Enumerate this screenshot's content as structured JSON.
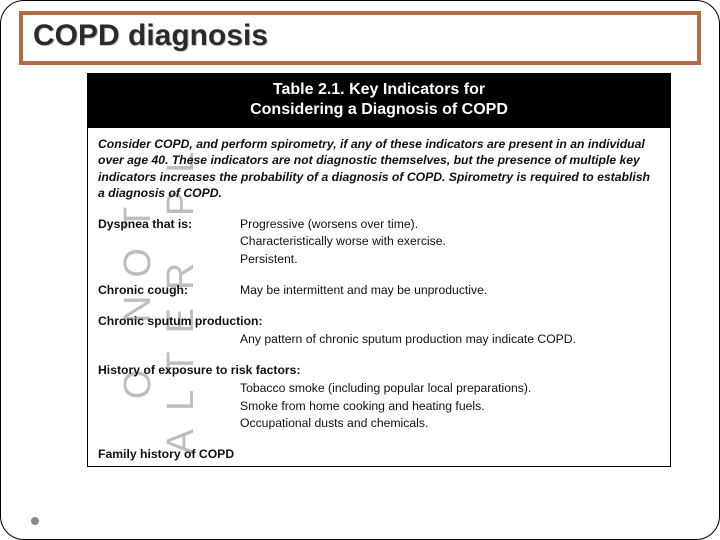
{
  "slide": {
    "title": "COPD diagnosis"
  },
  "table": {
    "header": {
      "line1": "Table 2.1. Key Indicators for",
      "line2": "Considering a Diagnosis of COPD"
    },
    "intro": "Consider COPD, and perform spirometry, if any of these indicators are present in an individual over age 40. These indicators are not diagnostic themselves, but the presence of multiple key indicators increases the probability of a diagnosis of COPD. Spirometry is required to establish a diagnosis of COPD.",
    "dyspnea": {
      "label": "Dyspnea that is:",
      "l1": "Progressive (worsens over time).",
      "l2": "Characteristically worse with exercise.",
      "l3": "Persistent."
    },
    "cough": {
      "label": "Chronic cough:",
      "desc": "May be intermittent and may be unproductive."
    },
    "sputum": {
      "label": "Chronic sputum production:",
      "desc": "Any pattern of chronic sputum production may  indicate COPD."
    },
    "exposure": {
      "label": "History of exposure to risk factors:",
      "l1": "Tobacco smoke (including popular local preparations).",
      "l2": "Smoke from home cooking and heating fuels.",
      "l3": "Occupational dusts and chemicals."
    },
    "family": {
      "label": "Family history of COPD"
    }
  },
  "watermark": "O NOT ALTER PL"
}
